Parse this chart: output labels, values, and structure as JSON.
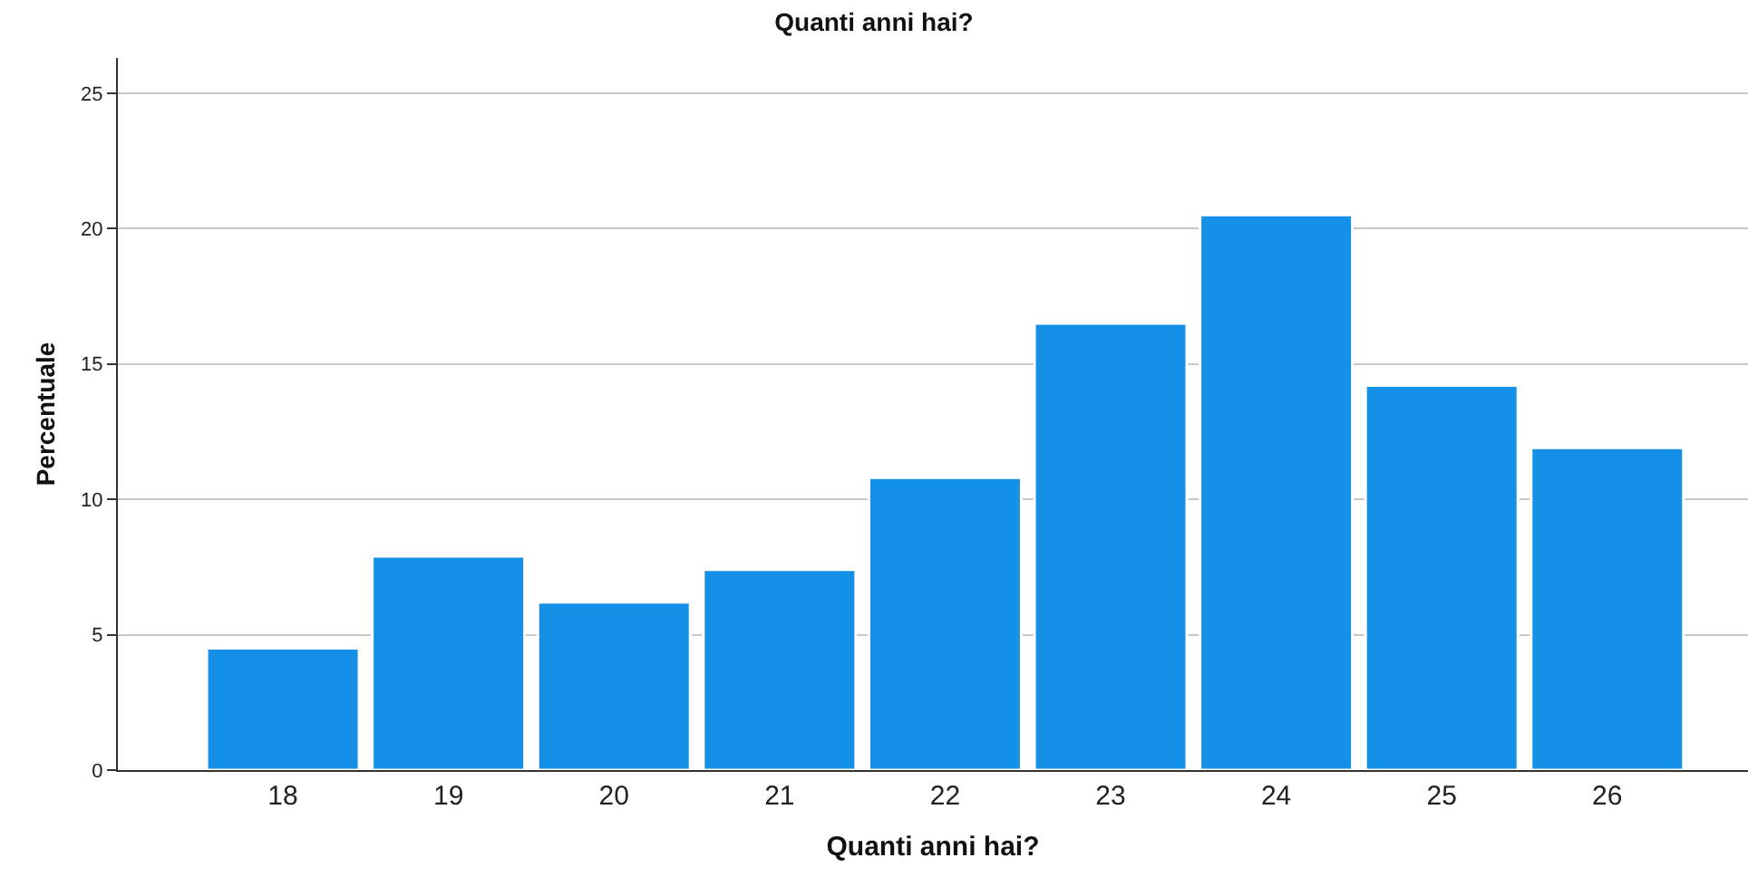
{
  "chart_data": {
    "type": "bar",
    "title": "Quanti anni hai?",
    "xlabel": "Quanti anni hai?",
    "ylabel": "Percentuale",
    "categories": [
      "18",
      "19",
      "20",
      "21",
      "22",
      "23",
      "24",
      "25",
      "26"
    ],
    "values": [
      4.5,
      7.9,
      6.2,
      7.4,
      10.8,
      16.5,
      20.5,
      14.2,
      11.9
    ],
    "color": "#1490e6",
    "ylim": [
      0,
      26.3
    ],
    "yticks": [
      0,
      5,
      10,
      15,
      20,
      25
    ],
    "grid": "y"
  }
}
